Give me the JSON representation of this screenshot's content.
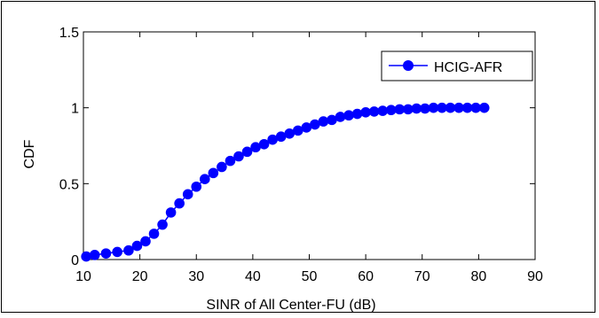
{
  "chart_data": {
    "type": "line",
    "title": "",
    "xlabel": "SINR of All Center-FU (dB)",
    "ylabel": "CDF",
    "xlim": [
      10,
      90
    ],
    "ylim": [
      0,
      1.5
    ],
    "xticks": [
      10,
      20,
      30,
      40,
      50,
      60,
      70,
      80,
      90
    ],
    "yticks": [
      0,
      0.5,
      1,
      1.5
    ],
    "xtick_labels": [
      "10",
      "20",
      "30",
      "40",
      "50",
      "60",
      "70",
      "80",
      "90"
    ],
    "ytick_labels": [
      "0",
      "0.5",
      "1",
      "1.5"
    ],
    "grid": false,
    "legend": {
      "position": "top-right",
      "entries": [
        "HCIG-AFR"
      ]
    },
    "series": [
      {
        "name": "HCIG-AFR",
        "color": "#0000ff",
        "marker": "circle",
        "x": [
          10.5,
          12,
          14,
          16,
          18,
          19.5,
          21,
          22.5,
          24,
          25.5,
          27,
          28.5,
          30,
          31.5,
          33,
          34.5,
          36,
          37.5,
          39,
          40.5,
          42,
          43.5,
          45,
          46.5,
          48,
          49.5,
          51,
          52.5,
          54,
          55.5,
          57,
          58.5,
          60,
          61.5,
          63,
          64.5,
          66,
          67.5,
          69,
          70.5,
          72,
          73.5,
          75,
          76.5,
          78,
          79.5,
          81
        ],
        "y": [
          0.02,
          0.03,
          0.04,
          0.05,
          0.06,
          0.09,
          0.12,
          0.17,
          0.23,
          0.31,
          0.37,
          0.43,
          0.48,
          0.53,
          0.57,
          0.61,
          0.65,
          0.68,
          0.71,
          0.74,
          0.76,
          0.79,
          0.81,
          0.83,
          0.85,
          0.87,
          0.89,
          0.91,
          0.92,
          0.94,
          0.95,
          0.96,
          0.97,
          0.975,
          0.98,
          0.985,
          0.99,
          0.99,
          0.995,
          0.995,
          1.0,
          1.0,
          1.0,
          1.0,
          1.0,
          1.0,
          1.0
        ]
      }
    ]
  }
}
